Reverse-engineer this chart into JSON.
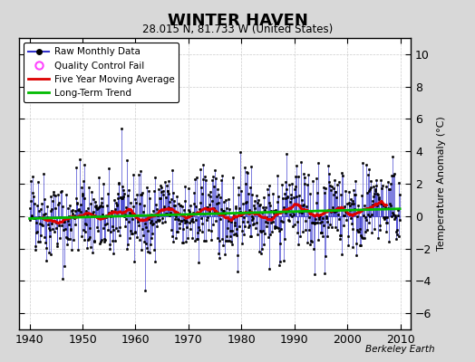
{
  "title": "WINTER HAVEN",
  "subtitle": "28.015 N, 81.733 W (United States)",
  "ylabel": "Temperature Anomaly (°C)",
  "xlabel_credit": "Berkeley Earth",
  "xlim": [
    1938,
    2012
  ],
  "ylim": [
    -7,
    11
  ],
  "yticks": [
    -6,
    -4,
    -2,
    0,
    2,
    4,
    6,
    8,
    10
  ],
  "xticks": [
    1940,
    1950,
    1960,
    1970,
    1980,
    1990,
    2000,
    2010
  ],
  "fig_bg_color": "#d8d8d8",
  "plot_bg_color": "#ffffff",
  "raw_line_color": "#3333cc",
  "raw_marker_color": "#000000",
  "ma_color": "#dd0000",
  "trend_color": "#00bb00",
  "qc_color": "#ff44ff",
  "seed": 42,
  "n_years": 70,
  "start_year": 1940
}
